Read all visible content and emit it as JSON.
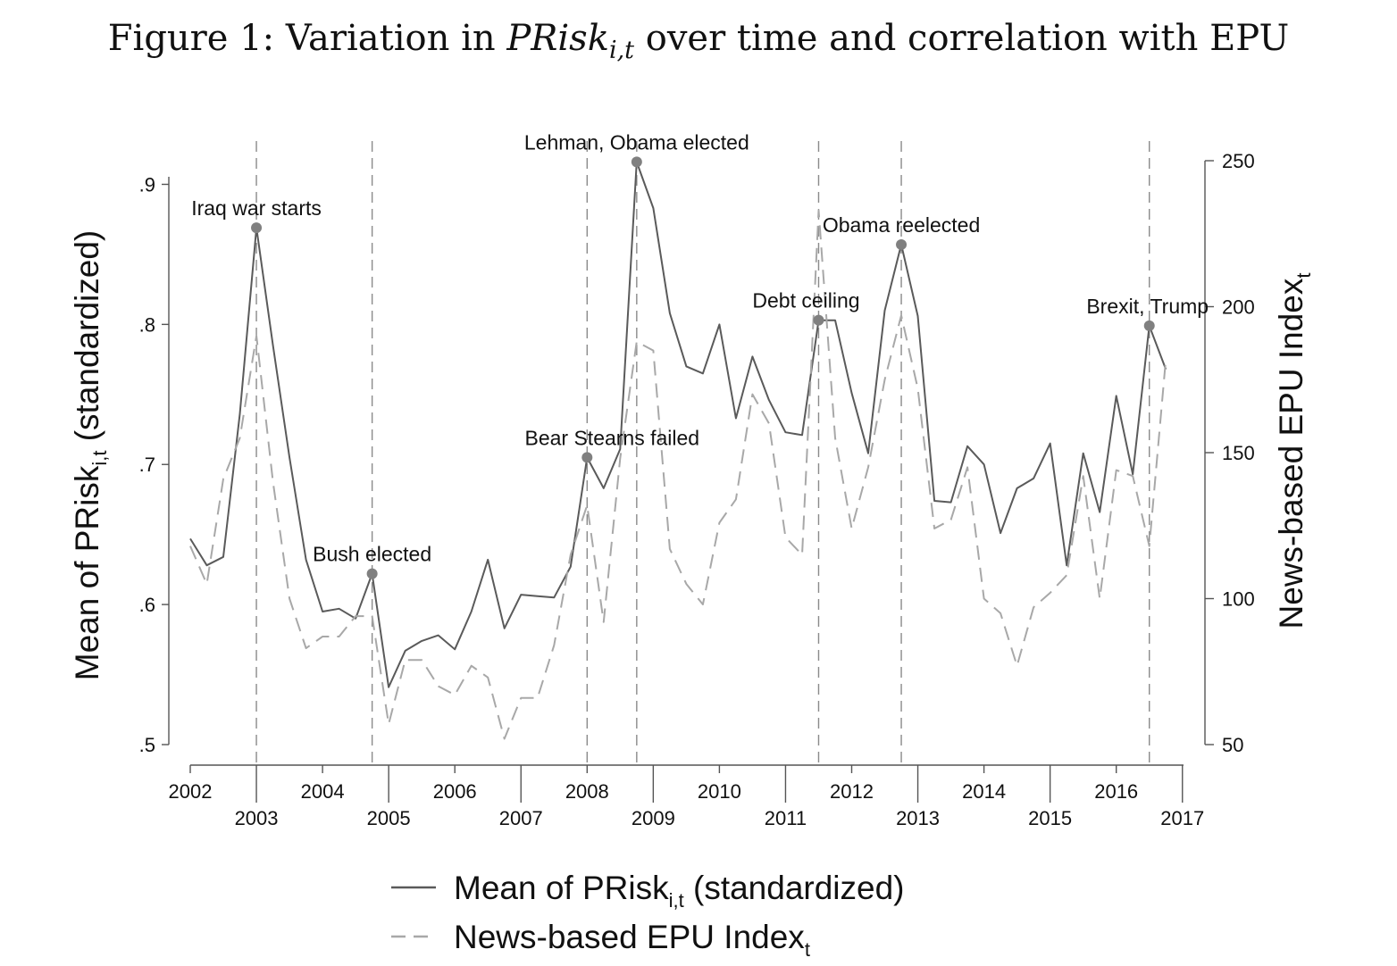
{
  "figure": {
    "title_prefix": "Figure 1: Variation in ",
    "title_var": "PRisk",
    "title_var_sub": "i,t",
    "title_suffix": " over time and correlation with EPU"
  },
  "chart_data": {
    "type": "line",
    "x_ticks_row1": [
      "2002",
      "2004",
      "2006",
      "2008",
      "2010",
      "2012",
      "2014",
      "2016"
    ],
    "x_ticks_row2": [
      "2003",
      "2005",
      "2007",
      "2009",
      "2011",
      "2013",
      "2015",
      "2017"
    ],
    "y_left": {
      "label_main": "Mean of PRisk",
      "label_sub": "i,t",
      "label_suffix": " (standardized)",
      "range": [
        0.5,
        0.92
      ],
      "ticks": [
        0.5,
        0.6,
        0.7,
        0.8,
        0.9
      ],
      "tick_labels": [
        ".5",
        ".6",
        ".7",
        ".8",
        ".9"
      ]
    },
    "y_right": {
      "label_main": "News-based EPU Index",
      "label_sub": "t",
      "range": [
        50,
        250
      ],
      "ticks": [
        50,
        100,
        150,
        200,
        250
      ],
      "tick_labels": [
        "50",
        "100",
        "150",
        "200",
        "250"
      ]
    },
    "series": [
      {
        "name": "Mean of PRisk",
        "name_sub": "i,t",
        "name_suffix": " (standardized)",
        "axis": "left",
        "style": "solid",
        "color": "#5a5a5a",
        "x": [
          2002.0,
          2002.25,
          2002.5,
          2002.75,
          2003.0,
          2003.25,
          2003.5,
          2003.75,
          2004.0,
          2004.25,
          2004.5,
          2004.75,
          2005.0,
          2005.25,
          2005.5,
          2005.75,
          2006.0,
          2006.25,
          2006.5,
          2006.75,
          2007.0,
          2007.25,
          2007.5,
          2007.75,
          2008.0,
          2008.25,
          2008.5,
          2008.75,
          2009.0,
          2009.25,
          2009.5,
          2009.75,
          2010.0,
          2010.25,
          2010.5,
          2010.75,
          2011.0,
          2011.25,
          2011.5,
          2011.75,
          2012.0,
          2012.25,
          2012.5,
          2012.75,
          2013.0,
          2013.25,
          2013.5,
          2013.75,
          2014.0,
          2014.25,
          2014.5,
          2014.75,
          2015.0,
          2015.25,
          2015.5,
          2015.75,
          2016.0,
          2016.25,
          2016.5,
          2016.75
        ],
        "values": [
          0.647,
          0.628,
          0.634,
          0.736,
          0.869,
          0.785,
          0.705,
          0.632,
          0.595,
          0.597,
          0.59,
          0.622,
          0.541,
          0.567,
          0.574,
          0.578,
          0.568,
          0.595,
          0.632,
          0.583,
          0.607,
          0.606,
          0.605,
          0.627,
          0.705,
          0.683,
          0.711,
          0.916,
          0.883,
          0.808,
          0.77,
          0.765,
          0.8,
          0.733,
          0.777,
          0.746,
          0.723,
          0.721,
          0.803,
          0.803,
          0.751,
          0.708,
          0.81,
          0.857,
          0.806,
          0.674,
          0.673,
          0.713,
          0.7,
          0.651,
          0.683,
          0.69,
          0.715,
          0.628,
          0.708,
          0.666,
          0.749,
          0.693,
          0.799,
          0.768
        ]
      },
      {
        "name": "News-based EPU Index",
        "name_sub": "t",
        "name_suffix": "",
        "axis": "right",
        "style": "dashed",
        "color": "#a8a8a8",
        "x": [
          2002.0,
          2002.25,
          2002.5,
          2002.75,
          2003.0,
          2003.25,
          2003.5,
          2003.75,
          2004.0,
          2004.25,
          2004.5,
          2004.75,
          2005.0,
          2005.25,
          2005.5,
          2005.75,
          2006.0,
          2006.25,
          2006.5,
          2006.75,
          2007.0,
          2007.25,
          2007.5,
          2007.75,
          2008.0,
          2008.25,
          2008.5,
          2008.75,
          2009.0,
          2009.25,
          2009.5,
          2009.75,
          2010.0,
          2010.25,
          2010.5,
          2010.75,
          2011.0,
          2011.25,
          2011.5,
          2011.75,
          2012.0,
          2012.25,
          2012.5,
          2012.75,
          2013.0,
          2013.25,
          2013.5,
          2013.75,
          2014.0,
          2014.25,
          2014.5,
          2014.75,
          2015.0,
          2015.25,
          2015.5,
          2015.75,
          2016.0,
          2016.25,
          2016.5,
          2016.75
        ],
        "values": [
          118,
          105,
          141,
          155,
          190,
          140,
          100,
          83,
          87,
          87,
          94,
          94,
          57,
          79,
          79,
          70,
          67,
          77,
          73,
          52,
          66,
          66,
          84,
          115,
          132,
          92,
          148,
          188,
          185,
          117,
          105,
          98,
          126,
          134,
          170,
          160,
          121,
          115,
          233,
          155,
          124,
          145,
          175,
          197,
          172,
          124,
          127,
          145,
          100,
          95,
          77,
          97,
          102,
          108,
          142,
          100,
          144,
          142,
          118,
          182
        ]
      }
    ],
    "annotations": [
      {
        "label": "Iraq war starts",
        "x": 2003.0,
        "y": 0.869
      },
      {
        "label": "Bush elected",
        "x": 2004.75,
        "y": 0.622
      },
      {
        "label": "Bear Stearns failed",
        "x": 2008.0,
        "y": 0.705
      },
      {
        "label": "Lehman, Obama elected",
        "x": 2008.75,
        "y": 0.916
      },
      {
        "label": "Debt ceiling",
        "x": 2011.5,
        "y": 0.803
      },
      {
        "label": "Obama reelected",
        "x": 2012.75,
        "y": 0.857
      },
      {
        "label": "Brexit, Trump",
        "x": 2016.5,
        "y": 0.799
      }
    ],
    "grid": false,
    "legend_position": "bottom"
  }
}
